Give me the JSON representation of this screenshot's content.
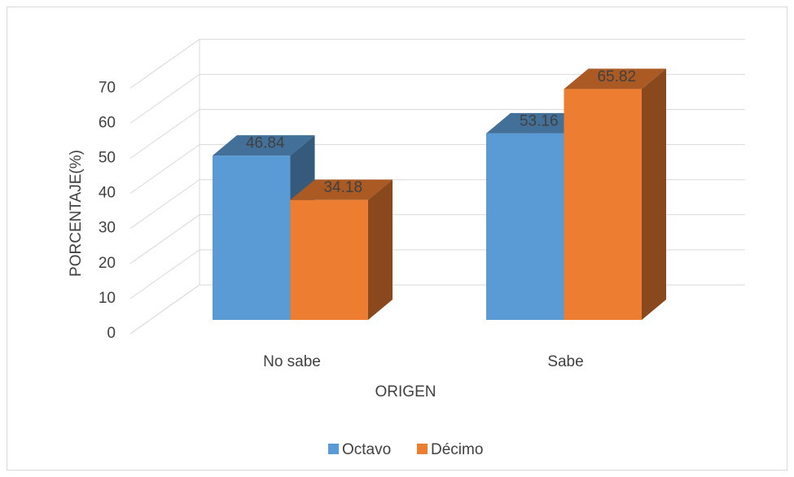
{
  "chart_data": {
    "type": "bar",
    "x_label": "ORIGEN",
    "y_label": "PORCENTAJE(%)",
    "categories": [
      "No sabe",
      "Sabe"
    ],
    "series": [
      {
        "name": "Octavo",
        "color": "#5b9bd5",
        "values": [
          46.84,
          53.16
        ]
      },
      {
        "name": "Décimo",
        "color": "#ed7d31",
        "values": [
          34.18,
          65.82
        ]
      }
    ],
    "ylim": [
      0,
      70
    ],
    "yticks": [
      0,
      10,
      20,
      30,
      40,
      50,
      60,
      70
    ],
    "grid": true,
    "legend": "bottom"
  }
}
